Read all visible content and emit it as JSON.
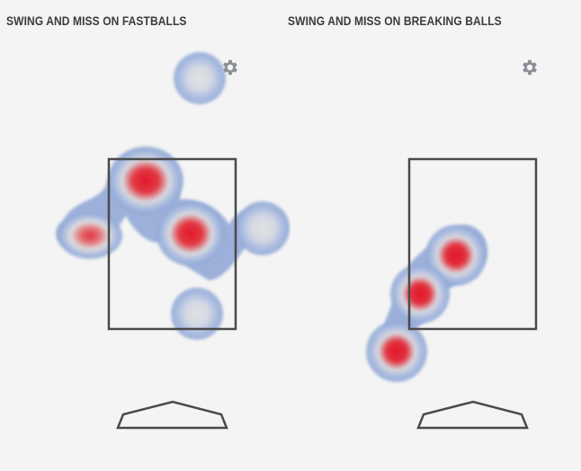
{
  "panels": {
    "fastballs": {
      "title": "SWING AND MISS ON FASTBALLS",
      "settings_icon": "gear-icon"
    },
    "breaking": {
      "title": "SWING AND MISS ON BREAKING BALLS",
      "settings_icon": "gear-icon"
    }
  },
  "colors": {
    "background": "#f4f4f4",
    "title_text": "#3b3b3b",
    "zone_stroke": "#4a4a4a",
    "gear": "#8a8f96",
    "heat_low": "#8fa6d4",
    "heat_mid": "#dcdcdc",
    "heat_high": "#e0202c"
  }
}
